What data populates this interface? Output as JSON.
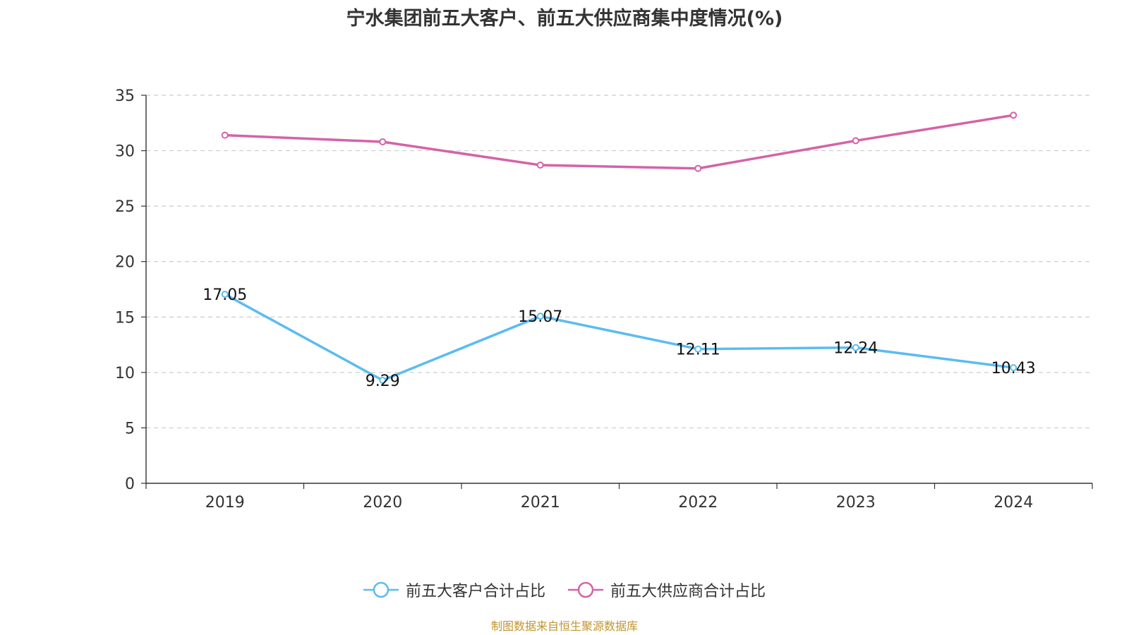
{
  "title": "宁水集团前五大客户、前五大供应商集中度情况(%)",
  "source": "制图数据来自恒生聚源数据库",
  "chart_data": {
    "type": "line",
    "categories": [
      "2019",
      "2020",
      "2021",
      "2022",
      "2023",
      "2024"
    ],
    "ylim": [
      0,
      35
    ],
    "yticks": [
      0,
      5,
      10,
      15,
      20,
      25,
      30,
      35
    ],
    "grid": "horizontal dashed",
    "legend_position": "bottom",
    "series": [
      {
        "name": "前五大客户合计占比",
        "color": "#5bbcf0",
        "values": [
          17.05,
          9.29,
          15.07,
          12.11,
          12.24,
          10.43
        ],
        "show_labels": true
      },
      {
        "name": "前五大供应商合计占比",
        "color": "#d463a8",
        "values": [
          31.4,
          30.8,
          28.7,
          28.4,
          30.9,
          33.2
        ],
        "show_labels": false
      }
    ]
  }
}
